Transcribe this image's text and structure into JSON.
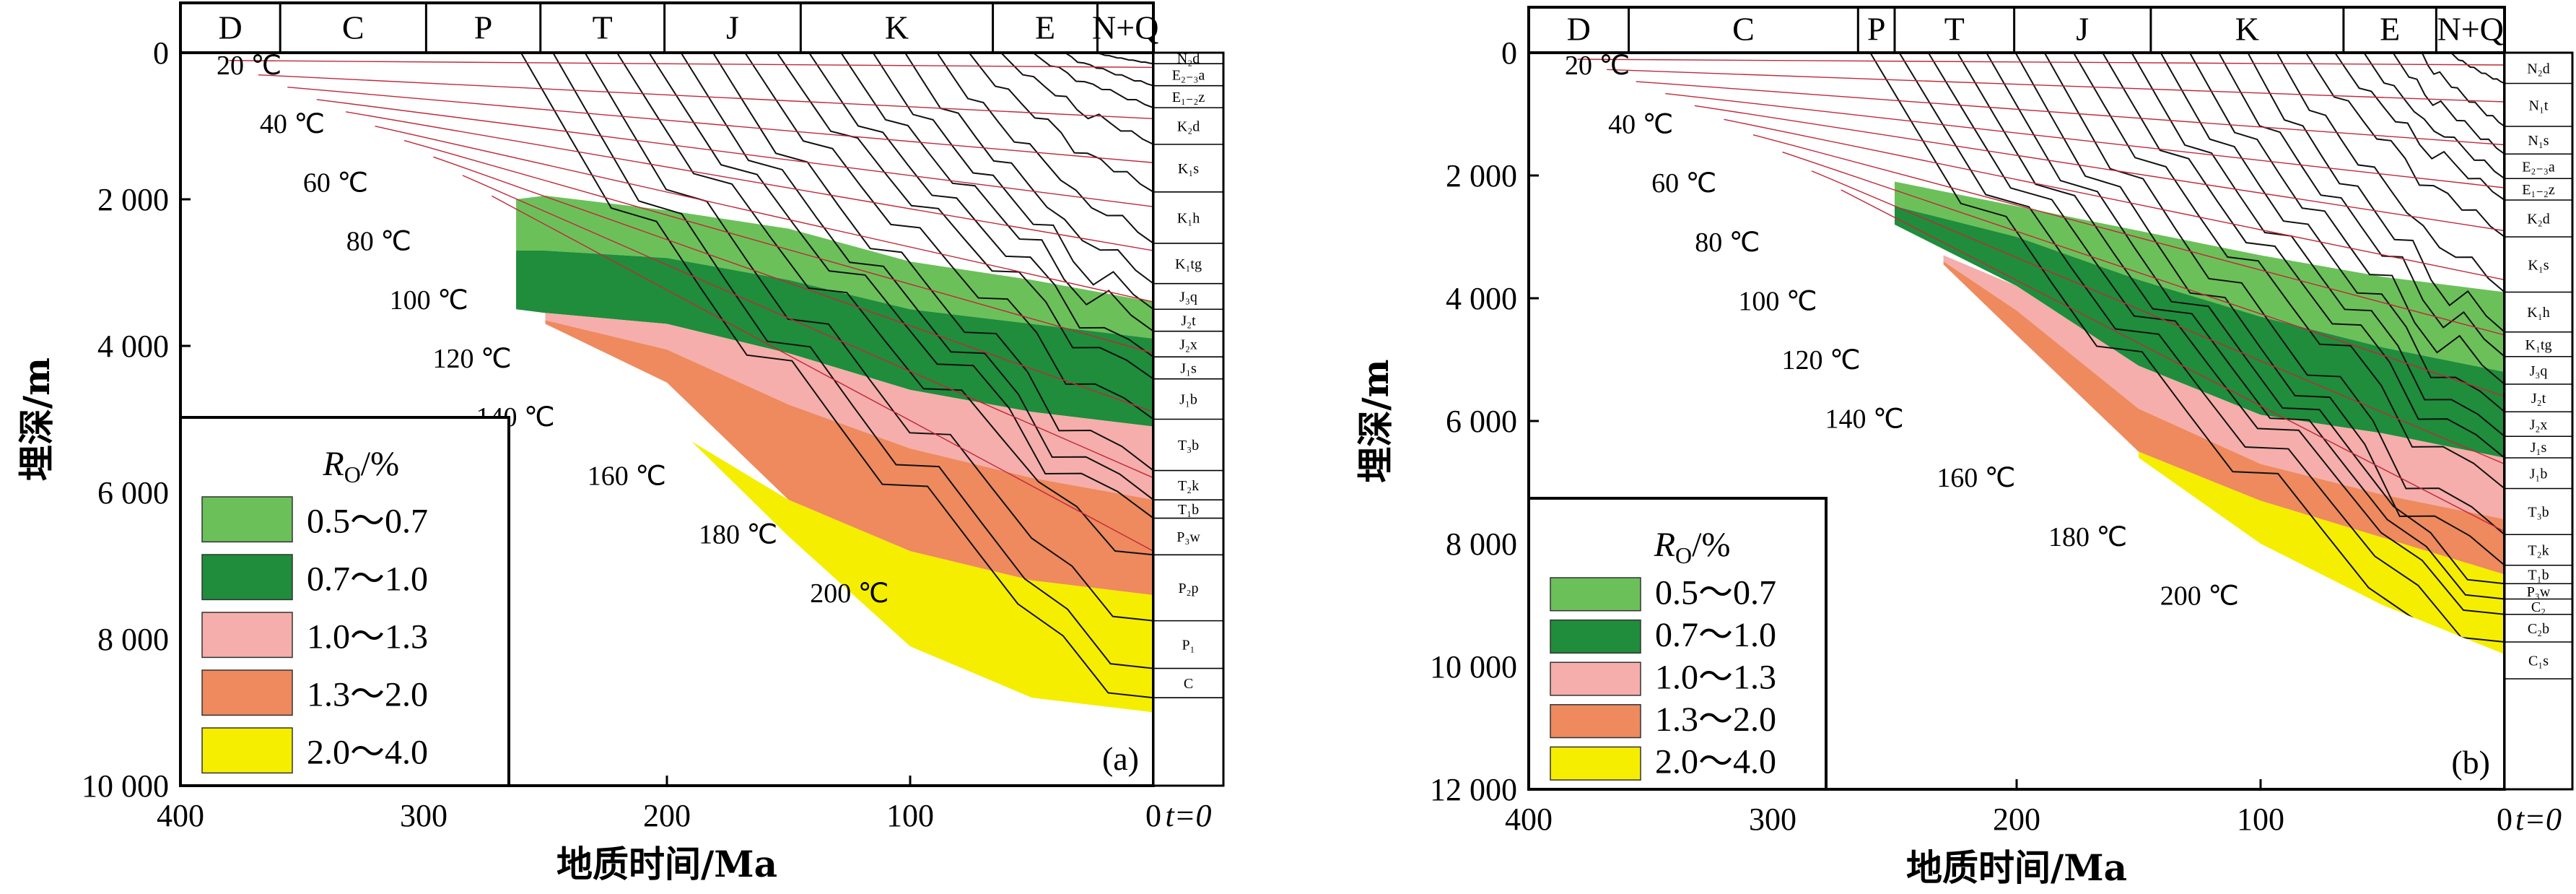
{
  "chart_data": [
    {
      "type": "area",
      "panel_label": "(a)",
      "xlabel": "地质时间/Ma",
      "ylabel": "埋深/m",
      "xlim": [
        400,
        0
      ],
      "ylim": [
        0,
        10000
      ],
      "x_ticks": [
        "400",
        "300",
        "200",
        "100",
        "0"
      ],
      "y_ticks": [
        "0",
        "2 000",
        "4 000",
        "6 000",
        "8 000",
        "10 000"
      ],
      "t_label": "t=0",
      "periods": [
        {
          "label": "D",
          "start": 400,
          "end": 359
        },
        {
          "label": "C",
          "start": 359,
          "end": 299
        },
        {
          "label": "P",
          "start": 299,
          "end": 252
        },
        {
          "label": "T",
          "start": 252,
          "end": 201
        },
        {
          "label": "J",
          "start": 201,
          "end": 145
        },
        {
          "label": "K",
          "start": 145,
          "end": 66
        },
        {
          "label": "E",
          "start": 66,
          "end": 23
        },
        {
          "label": "N+Q",
          "start": 23,
          "end": 0
        }
      ],
      "isotherms": [
        {
          "label": "20 ℃",
          "depth_at_0": 200
        },
        {
          "label": "40 ℃",
          "depth_at_0": 900
        },
        {
          "label": "60 ℃",
          "depth_at_0": 1500
        },
        {
          "label": "80 ℃",
          "depth_at_0": 2100
        },
        {
          "label": "100 ℃",
          "depth_at_0": 2700
        },
        {
          "label": "120 ℃",
          "depth_at_0": 3400
        },
        {
          "label": "140 ℃",
          "depth_at_0": 4100
        },
        {
          "label": "160 ℃",
          "depth_at_0": 4900
        },
        {
          "label": "180 ℃",
          "depth_at_0": 5800
        },
        {
          "label": "200 ℃",
          "depth_at_0": 6800
        }
      ],
      "strata": [
        {
          "label": "N₂d",
          "depth": 150
        },
        {
          "label": "E₂₋₃a",
          "depth": 450
        },
        {
          "label": "E₁₋₂z",
          "depth": 750
        },
        {
          "label": "K₂d",
          "depth": 1250
        },
        {
          "label": "K₁s",
          "depth": 1900
        },
        {
          "label": "K₁h",
          "depth": 2600
        },
        {
          "label": "K₁tg",
          "depth": 3150
        },
        {
          "label": "J₃q",
          "depth": 3500
        },
        {
          "label": "J₂t",
          "depth": 3800
        },
        {
          "label": "J₂x",
          "depth": 4150
        },
        {
          "label": "J₁s",
          "depth": 4450
        },
        {
          "label": "J₁b",
          "depth": 5000
        },
        {
          "label": "T₃b",
          "depth": 5700
        },
        {
          "label": "T₂k",
          "depth": 6100
        },
        {
          "label": "T₁b",
          "depth": 6350
        },
        {
          "label": "P₃w",
          "depth": 6850
        },
        {
          "label": "P₂p",
          "depth": 7750
        },
        {
          "label": "P₁",
          "depth": 8400
        },
        {
          "label": "C",
          "depth": 8800
        }
      ],
      "legend": {
        "title": "RO/%",
        "title_main": "R",
        "title_sub": "O",
        "title_unit": "/%",
        "entries": [
          {
            "label": "0.5～0.7",
            "color": "#6cc05a"
          },
          {
            "label": "0.7～1.0",
            "color": "#1f8d3c"
          },
          {
            "label": "1.0～1.3",
            "color": "#f5aeab"
          },
          {
            "label": "1.3～2.0",
            "color": "#ee8a5e"
          },
          {
            "label": "2.0～4.0",
            "color": "#f6ee00"
          }
        ]
      },
      "series": [
        {
          "name": "0.5～0.7",
          "x": [
            262,
            250,
            200,
            150,
            100,
            50,
            0
          ],
          "top": [
            2000,
            1950,
            2150,
            2400,
            2850,
            3100,
            3400
          ],
          "bottom": [
            2700,
            2700,
            2800,
            3100,
            3500,
            3700,
            3900
          ]
        },
        {
          "name": "0.7～1.0",
          "x": [
            262,
            250,
            200,
            150,
            100,
            50,
            0
          ],
          "top": [
            2700,
            2700,
            2800,
            3100,
            3500,
            3700,
            3900
          ],
          "bottom": [
            3500,
            3550,
            3700,
            4100,
            4600,
            4900,
            5100
          ]
        },
        {
          "name": "1.0～1.3",
          "x": [
            250,
            200,
            150,
            100,
            50,
            0
          ],
          "top": [
            3550,
            3700,
            4100,
            4600,
            4900,
            5100
          ],
          "bottom": [
            3650,
            4050,
            4800,
            5400,
            5800,
            6100
          ]
        },
        {
          "name": "1.3～2.0",
          "x": [
            250,
            200,
            150,
            100,
            50,
            0
          ],
          "top": [
            3650,
            4050,
            4800,
            5400,
            5800,
            6100
          ],
          "bottom": [
            3700,
            4500,
            6100,
            6800,
            7200,
            7400
          ]
        },
        {
          "name": "2.0～4.0",
          "x": [
            190,
            150,
            100,
            50,
            0
          ],
          "top": [
            5300,
            6100,
            6800,
            7200,
            7400
          ],
          "bottom": [
            5300,
            6600,
            8100,
            8800,
            9000
          ]
        }
      ]
    },
    {
      "type": "area",
      "panel_label": "(b)",
      "xlabel": "地质时间/Ma",
      "ylabel": "埋深/m",
      "xlim": [
        400,
        0
      ],
      "ylim": [
        0,
        12000
      ],
      "x_ticks": [
        "400",
        "300",
        "200",
        "100",
        "0"
      ],
      "y_ticks": [
        "0",
        "2 000",
        "4 000",
        "6 000",
        "8 000",
        "10 000",
        "12 000"
      ],
      "t_label": "t=0",
      "periods": [
        {
          "label": "D",
          "start": 400,
          "end": 359
        },
        {
          "label": "C",
          "start": 359,
          "end": 265
        },
        {
          "label": "P",
          "start": 265,
          "end": 250
        },
        {
          "label": "T",
          "start": 250,
          "end": 201
        },
        {
          "label": "J",
          "start": 201,
          "end": 145
        },
        {
          "label": "K",
          "start": 145,
          "end": 66
        },
        {
          "label": "E",
          "start": 66,
          "end": 28
        },
        {
          "label": "N+Q",
          "start": 28,
          "end": 0
        }
      ],
      "isotherms": [
        {
          "label": "20 ℃",
          "depth_at_0": 200
        },
        {
          "label": "40 ℃",
          "depth_at_0": 800
        },
        {
          "label": "60 ℃",
          "depth_at_0": 1500
        },
        {
          "label": "80 ℃",
          "depth_at_0": 2200
        },
        {
          "label": "100 ℃",
          "depth_at_0": 2900
        },
        {
          "label": "120 ℃",
          "depth_at_0": 3700
        },
        {
          "label": "140 ℃",
          "depth_at_0": 4600
        },
        {
          "label": "160 ℃",
          "depth_at_0": 5600
        },
        {
          "label": "180 ℃",
          "depth_at_0": 6700
        },
        {
          "label": "200 ℃",
          "depth_at_0": 7800
        }
      ],
      "strata": [
        {
          "label": "N₂d",
          "depth": 500
        },
        {
          "label": "N₁t",
          "depth": 1200
        },
        {
          "label": "N₁s",
          "depth": 1650
        },
        {
          "label": "E₂₋₃a",
          "depth": 2050
        },
        {
          "label": "E₁₋₂z",
          "depth": 2400
        },
        {
          "label": "K₂d",
          "depth": 3000
        },
        {
          "label": "K₁s",
          "depth": 3900
        },
        {
          "label": "K₁h",
          "depth": 4550
        },
        {
          "label": "K₁tg",
          "depth": 4950
        },
        {
          "label": "J₃q",
          "depth": 5400
        },
        {
          "label": "J₂t",
          "depth": 5850
        },
        {
          "label": "J₂x",
          "depth": 6250
        },
        {
          "label": "J₁s",
          "depth": 6600
        },
        {
          "label": "J₁b",
          "depth": 7100
        },
        {
          "label": "T₃b",
          "depth": 7850
        },
        {
          "label": "T₂k",
          "depth": 8350
        },
        {
          "label": "T₁b",
          "depth": 8650
        },
        {
          "label": "P₃w",
          "depth": 8900
        },
        {
          "label": "C₂",
          "depth": 9150
        },
        {
          "label": "C₂b",
          "depth": 9600
        },
        {
          "label": "C₁s",
          "depth": 10200
        }
      ],
      "legend": {
        "title": "RO/%",
        "title_main": "R",
        "title_sub": "O",
        "title_unit": "/%",
        "entries": [
          {
            "label": "0.5～0.7",
            "color": "#6cc05a"
          },
          {
            "label": "0.7～1.0",
            "color": "#1f8d3c"
          },
          {
            "label": "1.0～1.3",
            "color": "#f5aeab"
          },
          {
            "label": "1.3～2.0",
            "color": "#ee8a5e"
          },
          {
            "label": "2.0～4.0",
            "color": "#f6ee00"
          }
        ]
      },
      "series": [
        {
          "name": "0.5～0.7",
          "x": [
            250,
            200,
            150,
            100,
            50,
            0
          ],
          "top": [
            2100,
            2500,
            2900,
            3300,
            3650,
            3900
          ],
          "bottom": [
            2500,
            3000,
            3700,
            4300,
            4800,
            5200
          ]
        },
        {
          "name": "0.7～1.0",
          "x": [
            250,
            200,
            150,
            100,
            50,
            0
          ],
          "top": [
            2500,
            3000,
            3700,
            4300,
            4800,
            5200
          ],
          "bottom": [
            2800,
            3800,
            5100,
            5900,
            6200,
            6600
          ]
        },
        {
          "name": "1.0～1.3",
          "x": [
            230,
            200,
            150,
            100,
            50,
            0
          ],
          "top": [
            3300,
            3800,
            5100,
            5900,
            6200,
            6600
          ],
          "bottom": [
            3400,
            4200,
            5800,
            6700,
            7200,
            7600
          ]
        },
        {
          "name": "1.3～2.0",
          "x": [
            230,
            200,
            150,
            100,
            50,
            0
          ],
          "top": [
            3400,
            4200,
            5800,
            6700,
            7200,
            7600
          ],
          "bottom": [
            3450,
            4600,
            6500,
            7300,
            7900,
            8500
          ]
        },
        {
          "name": "2.0～4.0",
          "x": [
            150,
            100,
            50,
            0
          ],
          "top": [
            6500,
            7300,
            7900,
            8500
          ],
          "bottom": [
            6600,
            8000,
            9000,
            9800
          ]
        }
      ]
    }
  ]
}
